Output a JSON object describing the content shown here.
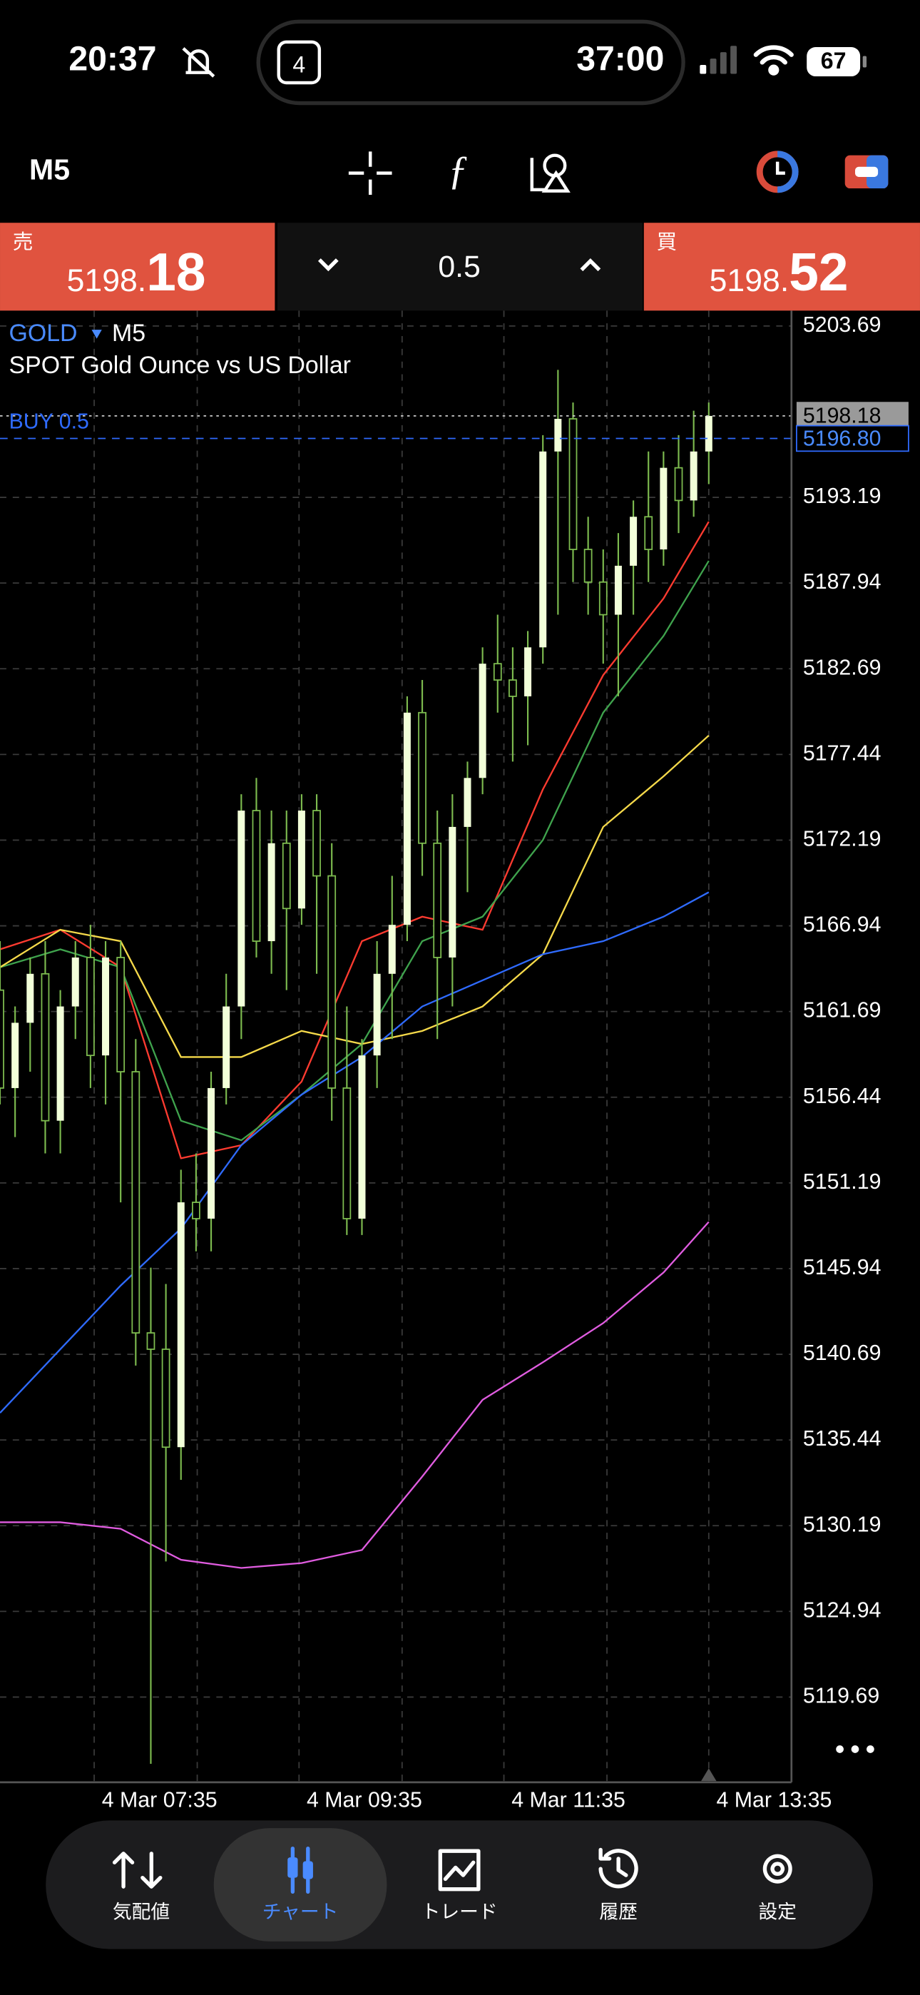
{
  "status_bar": {
    "time": "20:37",
    "calendar_day": "4",
    "timer": "37:00",
    "battery": "67"
  },
  "toolbar": {
    "timeframe": "M5"
  },
  "trade_panel": {
    "sell": {
      "label": "売",
      "price_main": "5198.",
      "price_pips": "18"
    },
    "volume": "0.5",
    "buy": {
      "label": "買",
      "price_main": "5198.",
      "price_pips": "52"
    }
  },
  "chart_data": {
    "type": "candlestick",
    "symbol": "GOLD",
    "timeframe": "M5",
    "description": "SPOT Gold Ounce vs US Dollar",
    "position_label": "BUY 0.5",
    "up_color": "#f2ffd9",
    "wick_color": "#7dbb4f",
    "ohlc": [
      [
        5163,
        5166,
        5156,
        5157
      ],
      [
        5157,
        5162,
        5154,
        5161
      ],
      [
        5161,
        5165,
        5158,
        5164
      ],
      [
        5164,
        5166,
        5153,
        5155
      ],
      [
        5155,
        5163,
        5153,
        5162
      ],
      [
        5162,
        5166,
        5160,
        5165
      ],
      [
        5165,
        5167,
        5157,
        5159
      ],
      [
        5159,
        5166,
        5156,
        5165
      ],
      [
        5165,
        5166,
        5150,
        5158
      ],
      [
        5158,
        5160,
        5140,
        5142
      ],
      [
        5142,
        5146,
        5115.6,
        5141
      ],
      [
        5141,
        5145,
        5128,
        5135
      ],
      [
        5135,
        5152,
        5133,
        5150
      ],
      [
        5150,
        5153,
        5147,
        5149
      ],
      [
        5149,
        5158,
        5147,
        5157
      ],
      [
        5157,
        5164,
        5156,
        5162
      ],
      [
        5162,
        5175,
        5160,
        5174
      ],
      [
        5174,
        5176,
        5165,
        5166
      ],
      [
        5166,
        5174,
        5164,
        5172
      ],
      [
        5172,
        5174,
        5163,
        5168
      ],
      [
        5168,
        5175,
        5167,
        5174
      ],
      [
        5174,
        5175,
        5164,
        5170
      ],
      [
        5170,
        5172,
        5155,
        5157
      ],
      [
        5157,
        5162,
        5148,
        5149
      ],
      [
        5149,
        5160,
        5148,
        5159
      ],
      [
        5159,
        5166,
        5157,
        5164
      ],
      [
        5164,
        5170,
        5160,
        5167
      ],
      [
        5167,
        5181,
        5166,
        5180
      ],
      [
        5180,
        5182,
        5170,
        5172
      ],
      [
        5172,
        5174,
        5160,
        5165
      ],
      [
        5165,
        5175,
        5162,
        5173
      ],
      [
        5173,
        5177,
        5169,
        5176
      ],
      [
        5176,
        5184,
        5175,
        5183
      ],
      [
        5183,
        5186,
        5180,
        5182
      ],
      [
        5182,
        5184,
        5177,
        5181
      ],
      [
        5181,
        5185,
        5178,
        5184
      ],
      [
        5184,
        5197,
        5183,
        5196
      ],
      [
        5196,
        5201,
        5186,
        5198
      ],
      [
        5198,
        5199,
        5188,
        5190
      ],
      [
        5190,
        5192,
        5186,
        5188
      ],
      [
        5188,
        5190,
        5183,
        5186
      ],
      [
        5186,
        5191,
        5181,
        5189
      ],
      [
        5189,
        5193,
        5186,
        5192
      ],
      [
        5192,
        5196,
        5188,
        5190
      ],
      [
        5190,
        5196,
        5189,
        5195
      ],
      [
        5195,
        5197,
        5191,
        5193
      ],
      [
        5193,
        5198.5,
        5192,
        5196
      ],
      [
        5196,
        5199,
        5194,
        5198.18
      ]
    ],
    "ma_x": [
      0,
      4,
      8,
      12,
      16,
      20,
      24,
      28,
      32,
      36,
      40,
      44,
      47
    ],
    "moving_averages": [
      {
        "color": "#ff3b30",
        "values": [
          5165.5,
          5166.7,
          5164.4,
          5152.7,
          5153.5,
          5157.4,
          5166,
          5167.5,
          5166.7,
          5175.3,
          5182.3,
          5187,
          5191.7
        ]
      },
      {
        "color": "#3fa34d",
        "values": [
          5164.4,
          5165.5,
          5164.4,
          5155,
          5153.8,
          5156.6,
          5159.7,
          5166,
          5167.5,
          5172.2,
          5180,
          5184.7,
          5189.3
        ]
      },
      {
        "color": "#f5d94a",
        "values": [
          5164.4,
          5166.7,
          5166,
          5158.9,
          5158.9,
          5160.5,
          5159.7,
          5160.5,
          5162,
          5165.2,
          5173,
          5176.1,
          5178.6
        ]
      },
      {
        "color": "#2f6bff",
        "values": [
          5137.1,
          5141,
          5144.9,
          5148.4,
          5153.5,
          5156.6,
          5158.9,
          5162,
          5163.6,
          5165.2,
          5166,
          5167.5,
          5169
        ]
      },
      {
        "color": "#e05ce0",
        "values": [
          5130.4,
          5130.4,
          5130,
          5128.1,
          5127.6,
          5127.9,
          5128.7,
          5133.2,
          5137.9,
          5140.2,
          5142.6,
          5145.7,
          5148.8
        ]
      }
    ],
    "ylim": [
      5114.47,
      5204.63
    ],
    "yticks": [
      5203.69,
      5193.19,
      5187.94,
      5182.69,
      5177.44,
      5172.19,
      5166.94,
      5161.69,
      5156.44,
      5151.19,
      5145.94,
      5140.69,
      5135.44,
      5130.19,
      5124.94,
      5119.69
    ],
    "bid_line": 5198.18,
    "position_line": {
      "value": 5196.8,
      "label": "5196.80"
    },
    "time_labels": [
      "4 Mar 07:35",
      "4 Mar 09:35",
      "4 Mar 11:35",
      "4 Mar 13:35"
    ],
    "grid": true
  },
  "nav": {
    "items": [
      "気配値",
      "チャート",
      "トレード",
      "履歴",
      "設定"
    ],
    "active": 1
  }
}
